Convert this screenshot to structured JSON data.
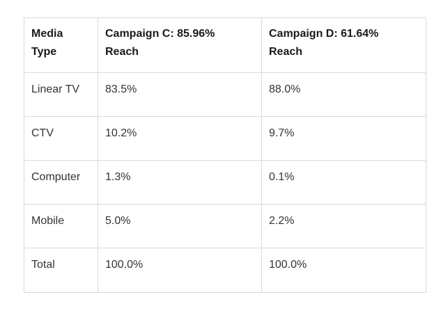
{
  "table": {
    "headers": [
      {
        "line1": "Media",
        "line2": "Type"
      },
      {
        "line1": "Campaign C: 85.96%",
        "line2": "Reach"
      },
      {
        "line1": "Campaign D: 61.64%",
        "line2": "Reach"
      }
    ],
    "rows": [
      [
        "Linear TV",
        "83.5%",
        "88.0%"
      ],
      [
        "CTV",
        "10.2%",
        "9.7%"
      ],
      [
        "Computer",
        "1.3%",
        "0.1%"
      ],
      [
        "Mobile",
        "5.0%",
        "2.2%"
      ],
      [
        "Total",
        "100.0%",
        "100.0%"
      ]
    ]
  }
}
